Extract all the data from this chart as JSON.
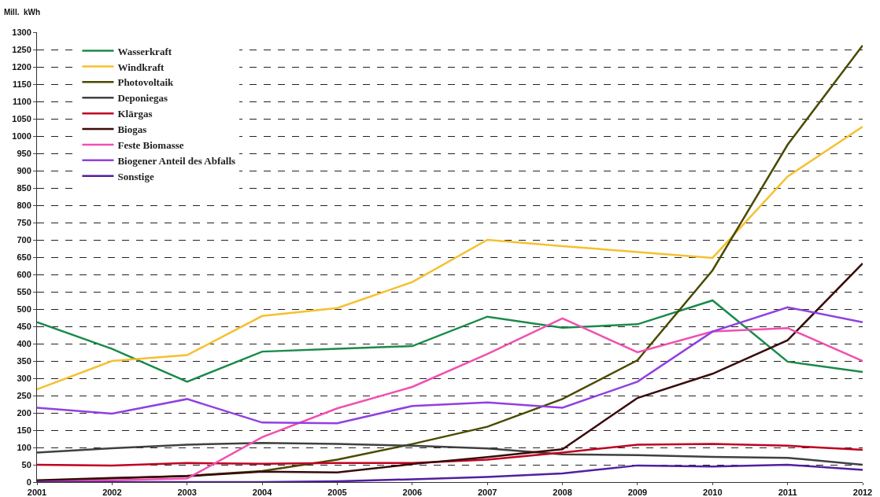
{
  "chart_data": {
    "type": "line",
    "ylabel": "Mill.  kWh",
    "x": [
      2001,
      2002,
      2003,
      2004,
      2005,
      2006,
      2007,
      2008,
      2009,
      2010,
      2011,
      2012
    ],
    "xlim": [
      2001,
      2012
    ],
    "xticks": [
      2001,
      2002,
      2003,
      2004,
      2005,
      2006,
      2007,
      2008,
      2009,
      2010,
      2011,
      2012
    ],
    "ylim": [
      0,
      1300
    ],
    "yticks": [
      0,
      50,
      100,
      150,
      200,
      250,
      300,
      350,
      400,
      450,
      500,
      550,
      600,
      650,
      700,
      750,
      800,
      850,
      900,
      950,
      1000,
      1050,
      1100,
      1150,
      1200,
      1250,
      1300
    ],
    "grid": "y",
    "legend": "top left",
    "marker": "none",
    "line_style": "solid",
    "series": [
      {
        "name": "Wasserkraft",
        "color": "#1a8a4a",
        "values": [
          462,
          385,
          290,
          377,
          385,
          393,
          478,
          446,
          456,
          525,
          348,
          318
        ]
      },
      {
        "name": "Windkraft",
        "color": "#f5c030",
        "values": [
          268,
          350,
          367,
          480,
          503,
          578,
          700,
          682,
          665,
          648,
          883,
          1027
        ]
      },
      {
        "name": "Photovoltaik",
        "color": "#4a4a00",
        "values": [
          2,
          10,
          18,
          32,
          65,
          110,
          160,
          240,
          352,
          612,
          975,
          1262
        ]
      },
      {
        "name": "Deponiegas",
        "color": "#404040",
        "values": [
          85,
          98,
          108,
          113,
          110,
          105,
          97,
          80,
          78,
          73,
          70,
          50
        ]
      },
      {
        "name": "Klärgas",
        "color": "#c00020",
        "values": [
          50,
          48,
          55,
          53,
          55,
          55,
          65,
          85,
          108,
          110,
          105,
          93
        ]
      },
      {
        "name": "Biogas",
        "color": "#3a0a0a",
        "values": [
          5,
          12,
          17,
          30,
          28,
          52,
          72,
          95,
          243,
          313,
          410,
          632
        ]
      },
      {
        "name": "Feste Biomasse",
        "color": "#f050b0",
        "values": [
          0,
          5,
          10,
          130,
          213,
          275,
          370,
          473,
          375,
          435,
          445,
          350
        ]
      },
      {
        "name": "Biogener Anteil des Abfalls",
        "color": "#9040e0",
        "values": [
          215,
          198,
          240,
          172,
          170,
          220,
          230,
          215,
          290,
          435,
          505,
          462
        ]
      },
      {
        "name": "Sonstige",
        "color": "#5020a0",
        "values": [
          0,
          0,
          0,
          0,
          2,
          8,
          15,
          25,
          48,
          45,
          50,
          35
        ]
      }
    ]
  }
}
